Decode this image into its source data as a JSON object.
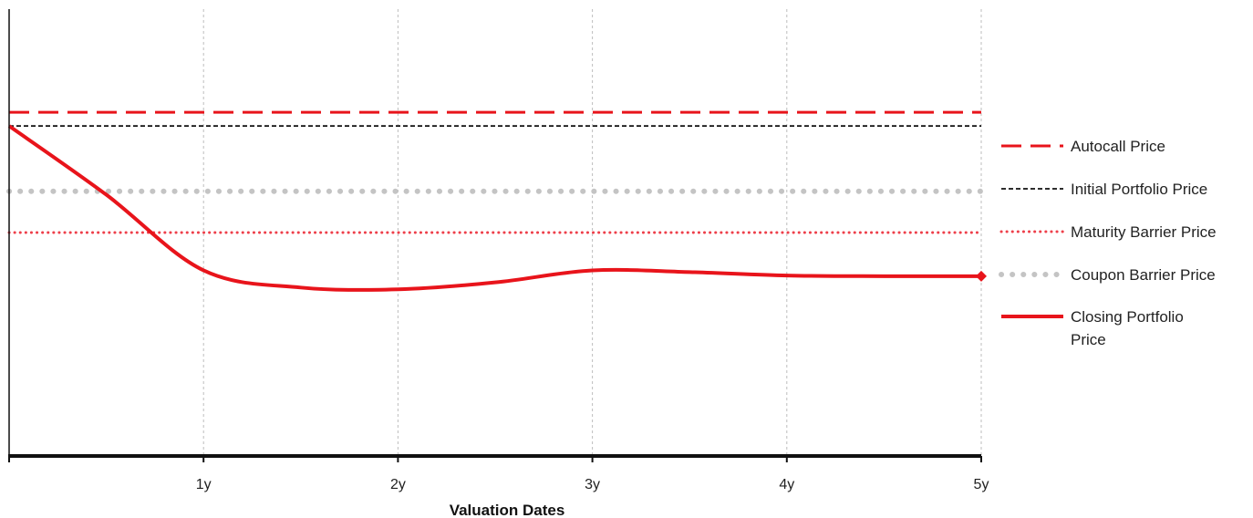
{
  "chart_data": {
    "type": "line",
    "title": "",
    "xlabel": "Valuation Dates",
    "ylabel": "",
    "x_ticks": [
      "1y",
      "2y",
      "3y",
      "4y",
      "5y"
    ],
    "xlim": [
      0,
      5
    ],
    "grid": "vertical dashed at each year",
    "legend_position": "right",
    "reference_lines": [
      {
        "name": "Autocall Price",
        "value": 100,
        "style": "long-dash",
        "color": "#e8141b"
      },
      {
        "name": "Initial Portfolio Price",
        "value": 96,
        "style": "dashed",
        "color": "#111111"
      },
      {
        "name": "Maturity Barrier Price",
        "value": 65,
        "style": "dotted",
        "color": "#ee3f4a"
      },
      {
        "name": "Coupon Barrier Price",
        "value": 77,
        "style": "dotted",
        "color": "#c4c4c4"
      }
    ],
    "series": [
      {
        "name": "Closing Portfolio Price",
        "color": "#e8141b",
        "x": [
          0,
          0.5,
          1,
          1.5,
          2,
          2.5,
          3,
          3.5,
          4,
          4.5,
          5
        ],
        "y": [
          96,
          76,
          54,
          49,
          48.5,
          50.5,
          54,
          53.5,
          52.5,
          52.3,
          52.3
        ]
      }
    ],
    "legend": [
      {
        "key": "autocall",
        "label": "Autocall Price"
      },
      {
        "key": "initial",
        "label": "Initial Portfolio Price"
      },
      {
        "key": "maturity",
        "label": "Maturity Barrier Price"
      },
      {
        "key": "coupon",
        "label": "Coupon Barrier Price"
      },
      {
        "key": "closing",
        "label_line1": "Closing Portfolio",
        "label_line2": "Price"
      }
    ]
  }
}
